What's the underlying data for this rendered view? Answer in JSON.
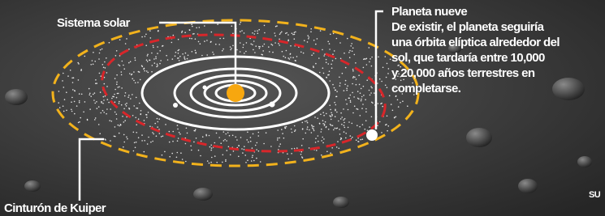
{
  "labels": {
    "solar_system": "Sistema solar",
    "planet_nine": "Planeta nueve",
    "kuiper_belt": "Cinturón de Kuiper",
    "corner_fragment": "SU"
  },
  "description": [
    "De existir, el planeta seguiría",
    "una órbita elíptica alrededor del",
    "sol, que tardaría entre 10,000",
    "y 20,000 años terrestres en",
    "completarse."
  ]
}
